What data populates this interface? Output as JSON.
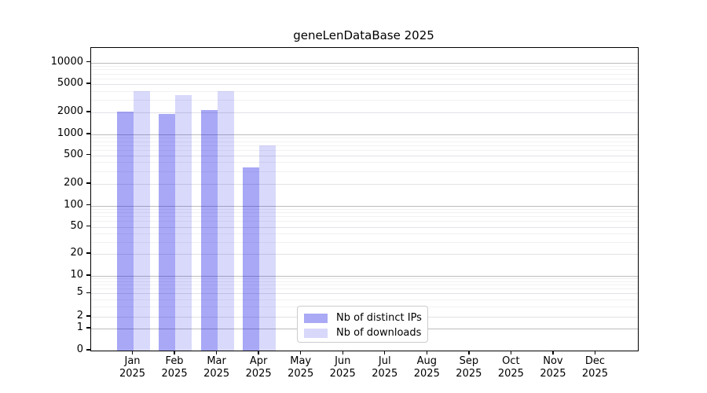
{
  "title": "geneLenDataBase 2025",
  "chart_data": {
    "type": "bar",
    "title": "geneLenDataBase 2025",
    "y_scale": "symlog",
    "y_ticks": [
      0,
      1,
      2,
      5,
      10,
      20,
      50,
      100,
      200,
      500,
      1000,
      2000,
      5000,
      10000
    ],
    "x_tick_months": [
      "Jan",
      "Feb",
      "Mar",
      "Apr",
      "May",
      "Jun",
      "Jul",
      "Aug",
      "Sep",
      "Oct",
      "Nov",
      "Dec"
    ],
    "x_tick_year": "2025",
    "series": [
      {
        "name": "Nb of distinct IPs",
        "legend_color": "#a9a9f5",
        "fill": "rgba(0,0,230,0.34)",
        "values": [
          2050,
          1900,
          2170,
          335,
          0,
          0,
          0,
          0,
          0,
          0,
          0,
          0
        ]
      },
      {
        "name": "Nb of downloads",
        "legend_color": "#d8d8fb",
        "fill": "rgba(0,0,230,0.15)",
        "values": [
          3950,
          3500,
          3950,
          690,
          0,
          0,
          0,
          0,
          0,
          0,
          0,
          0
        ]
      }
    ],
    "legend_position": "inside-bottom-center",
    "grid": "on"
  }
}
